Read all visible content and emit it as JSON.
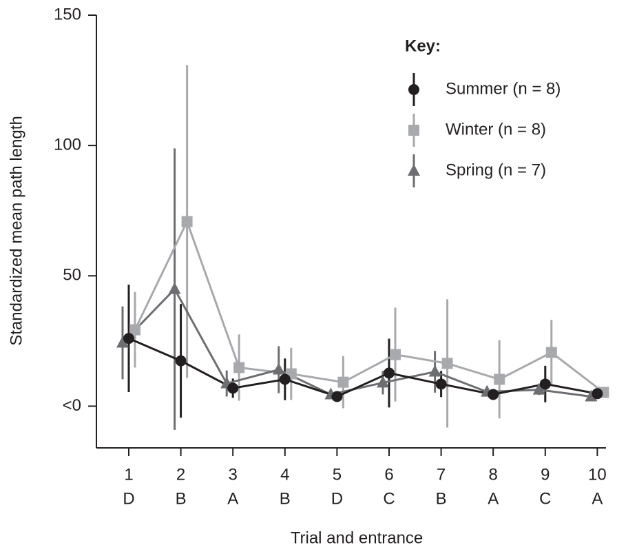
{
  "chart_data": {
    "type": "line",
    "x_label": "Trial and entrance",
    "y_label": "Standardized mean path length",
    "legend_title": "Key:",
    "categories": [
      "1",
      "2",
      "3",
      "4",
      "5",
      "6",
      "7",
      "8",
      "9",
      "10"
    ],
    "category_sublabels": [
      "D",
      "B",
      "A",
      "B",
      "D",
      "C",
      "B",
      "A",
      "C",
      "A"
    ],
    "ylim": [
      -16,
      150
    ],
    "yticks": [
      {
        "value": 0,
        "label": "<0"
      },
      50,
      100,
      150
    ],
    "series": [
      {
        "name": "Winter (n = 8)",
        "color": "#a7a9ac",
        "marker": "square",
        "values": [
          29.3,
          70.8,
          14.8,
          12.4,
          9.2,
          19.8,
          16.4,
          10.3,
          20.6,
          5.3
        ],
        "errors": [
          14.5,
          60,
          12.7,
          10,
          10,
          18,
          24.6,
          15,
          12.5,
          0.5
        ]
      },
      {
        "name": "Spring (n = 7)",
        "color": "#6d6e71",
        "marker": "triangle",
        "values": [
          24.3,
          44.9,
          8.7,
          14,
          4.5,
          9,
          13.2,
          5.5,
          6.3,
          3.7
        ],
        "errors": [
          14,
          54,
          5,
          9,
          1,
          4.5,
          8,
          1,
          2,
          0.5
        ]
      },
      {
        "name": "Summer (n = 8)",
        "color": "#231f20",
        "marker": "circle",
        "values": [
          26,
          17.4,
          6.9,
          10.3,
          3.7,
          12.7,
          8.5,
          4.5,
          8.5,
          4.8
        ],
        "errors": [
          20.6,
          21.8,
          3.7,
          8,
          1,
          13.2,
          5,
          1,
          7,
          1
        ]
      }
    ],
    "legend_order": [
      2,
      0,
      1
    ]
  }
}
